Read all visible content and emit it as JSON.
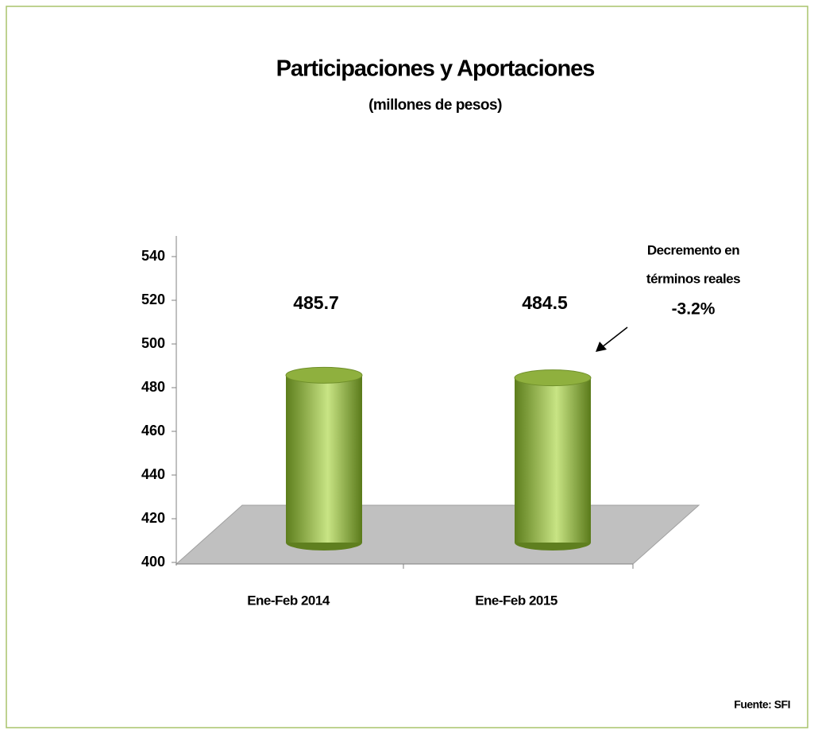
{
  "chart_data": {
    "type": "cylinder",
    "title": "Participaciones y Aportaciones",
    "subtitle": "(millones de pesos)",
    "categories": [
      "Ene-Feb 2014",
      "Ene-Feb 2015"
    ],
    "values": [
      485.7,
      484.5
    ],
    "color": "#8fb03e",
    "ylim": [
      400,
      540
    ],
    "yticks": [
      400,
      420,
      440,
      460,
      480,
      500,
      520,
      540
    ],
    "annotations": [
      "Decremento en",
      "términos reales",
      "-3.2%"
    ],
    "source": "Fuente: SFI"
  }
}
